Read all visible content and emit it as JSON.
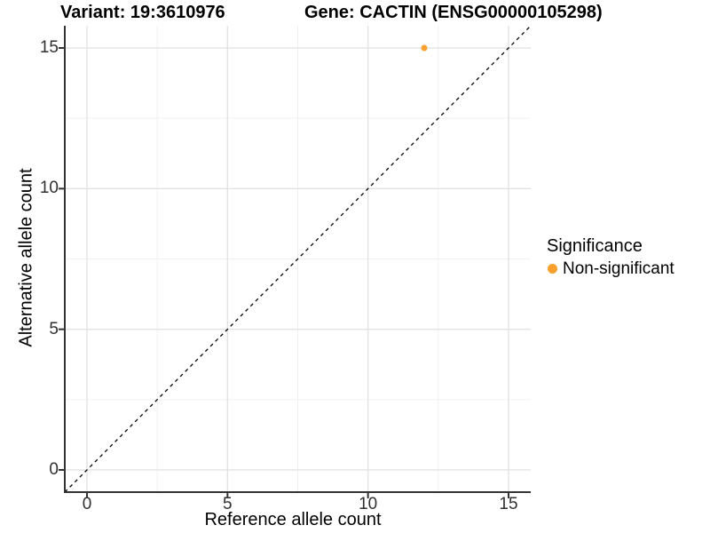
{
  "chart_data": {
    "type": "scatter",
    "title_left": "Variant: 19:3610976",
    "title_right": "Gene: CACTIN (ENSG00000105298)",
    "xlabel": "Reference allele count",
    "ylabel": "Alternative allele count",
    "xlim": [
      -0.79,
      15.79
    ],
    "ylim": [
      -0.79,
      15.79
    ],
    "xticks": [
      0,
      5,
      10,
      15
    ],
    "yticks": [
      0,
      5,
      10,
      15
    ],
    "x_minor_ticks": [
      2.5,
      7.5,
      12.5
    ],
    "y_minor_ticks": [
      2.5,
      7.5,
      12.5
    ],
    "grid": true,
    "identity_line": {
      "style": "dashed",
      "from": [
        -0.79,
        -0.79
      ],
      "to": [
        15.79,
        15.79
      ],
      "color": "#000000"
    },
    "series": [
      {
        "name": "Non-significant",
        "color": "#F9A02E",
        "points": [
          {
            "x": 12,
            "y": 15
          }
        ]
      }
    ],
    "legend": {
      "title": "Significance",
      "position": "right",
      "entries": [
        {
          "label": "Non-significant",
          "color": "#F9A02E"
        }
      ]
    }
  }
}
